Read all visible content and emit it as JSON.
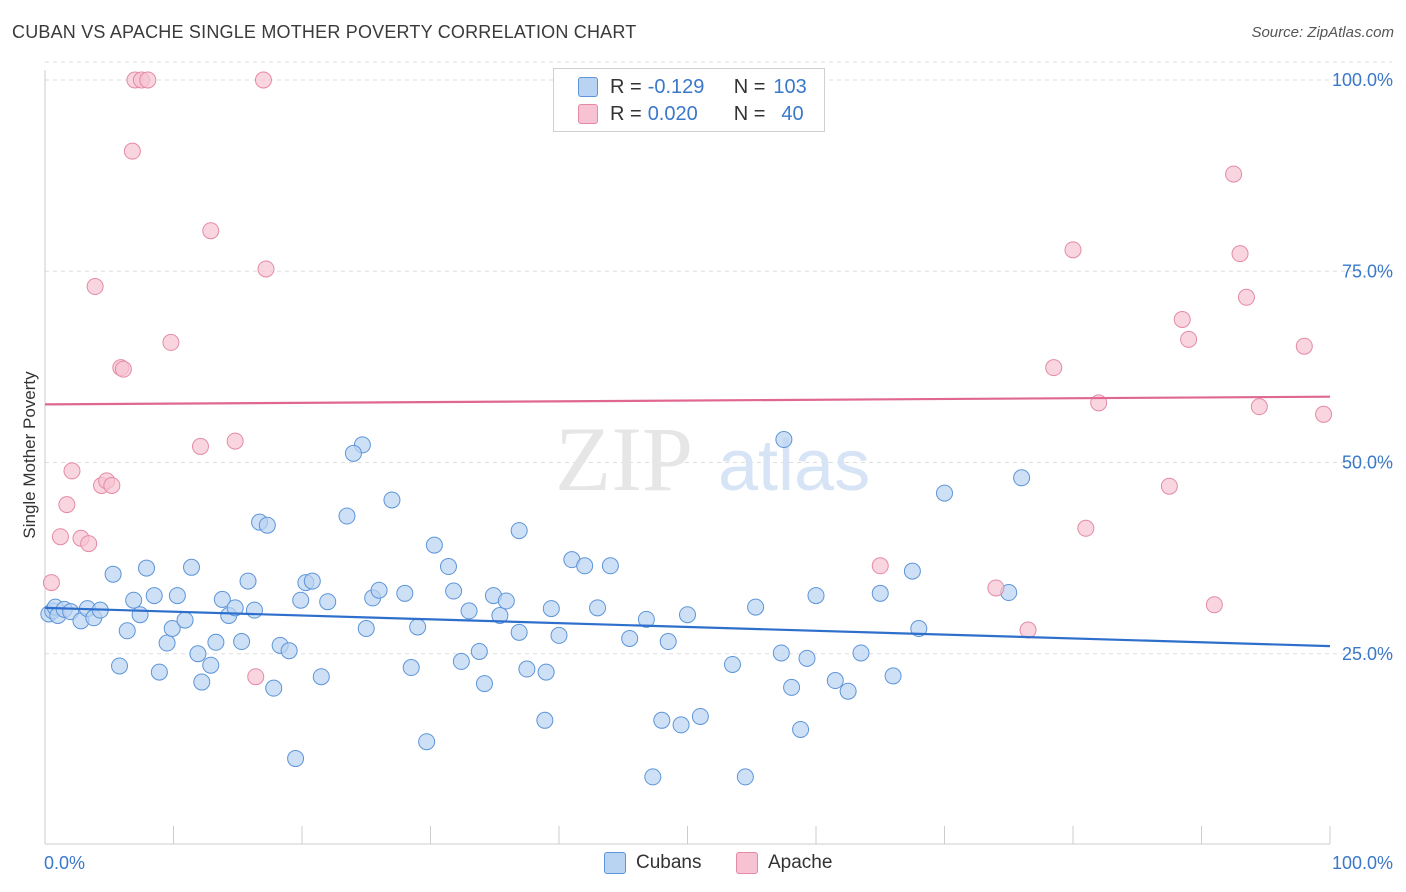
{
  "header": {
    "title": "CUBAN VS APACHE SINGLE MOTHER POVERTY CORRELATION CHART",
    "source": "Source: ZipAtlas.com"
  },
  "watermark": {
    "zip": "ZIP",
    "atlas": "atlas"
  },
  "legend": {
    "rows": [
      {
        "r_label": "R =",
        "r_value": "-0.129",
        "n_label": "N =",
        "n_value": "103"
      },
      {
        "r_label": "R =",
        "r_value": "0.020",
        "n_label": "N =",
        "n_value": "40"
      }
    ]
  },
  "bottom_legend": {
    "cubans": "Cubans",
    "apache": "Apache"
  },
  "colors": {
    "cubans_fill": "#b9d3f2",
    "cubans_stroke": "#5d95d8",
    "cubans_line": "#2f6fcc",
    "apache_fill": "#f7c3d2",
    "apache_stroke": "#e48aa6",
    "apache_line": "#e06890",
    "axis_label": "#3a78c9",
    "grid": "#dddddd"
  },
  "chart_data": {
    "type": "scatter",
    "title": "CUBAN VS APACHE SINGLE MOTHER POVERTY CORRELATION CHART",
    "xlabel": "",
    "ylabel": "Single Mother Poverty",
    "xlim": [
      0,
      100
    ],
    "ylim": [
      0,
      102
    ],
    "x_tick_labels": [
      "0.0%",
      "100.0%"
    ],
    "y_ticks": [
      {
        "value": 25,
        "label": "25.0%"
      },
      {
        "value": 50,
        "label": "50.0%"
      },
      {
        "value": 75,
        "label": "75.0%"
      },
      {
        "value": 100,
        "label": "100.0%"
      }
    ],
    "grid": true,
    "series": [
      {
        "name": "Cubans",
        "r": -0.129,
        "n": 103,
        "trend": {
          "x": [
            0,
            100
          ],
          "y": [
            31.0,
            26.0
          ]
        },
        "points": [
          [
            0.3,
            30.2
          ],
          [
            0.6,
            30.6
          ],
          [
            0.8,
            31.1
          ],
          [
            1.0,
            30.0
          ],
          [
            1.5,
            30.8
          ],
          [
            2.0,
            30.5
          ],
          [
            2.8,
            29.3
          ],
          [
            3.3,
            30.9
          ],
          [
            3.8,
            29.7
          ],
          [
            4.3,
            30.7
          ],
          [
            5.3,
            35.4
          ],
          [
            5.8,
            23.4
          ],
          [
            6.4,
            28.0
          ],
          [
            6.9,
            32.0
          ],
          [
            7.4,
            30.1
          ],
          [
            7.9,
            36.2
          ],
          [
            8.5,
            32.6
          ],
          [
            8.9,
            22.6
          ],
          [
            9.5,
            26.4
          ],
          [
            9.9,
            28.3
          ],
          [
            10.3,
            32.6
          ],
          [
            10.9,
            29.4
          ],
          [
            11.4,
            36.3
          ],
          [
            11.9,
            25.0
          ],
          [
            12.2,
            21.3
          ],
          [
            12.9,
            23.5
          ],
          [
            13.3,
            26.5
          ],
          [
            13.8,
            32.1
          ],
          [
            14.3,
            30.0
          ],
          [
            14.8,
            31.0
          ],
          [
            15.3,
            26.6
          ],
          [
            15.8,
            34.5
          ],
          [
            16.3,
            30.7
          ],
          [
            16.7,
            42.2
          ],
          [
            17.3,
            41.8
          ],
          [
            17.8,
            20.5
          ],
          [
            18.3,
            26.1
          ],
          [
            19.0,
            25.4
          ],
          [
            19.5,
            11.3
          ],
          [
            19.9,
            32.0
          ],
          [
            20.3,
            34.3
          ],
          [
            20.8,
            34.5
          ],
          [
            21.5,
            22.0
          ],
          [
            22.0,
            31.8
          ],
          [
            23.5,
            43.0
          ],
          [
            24.7,
            52.3
          ],
          [
            24.0,
            51.2
          ],
          [
            25.0,
            28.3
          ],
          [
            25.5,
            32.3
          ],
          [
            26.0,
            33.3
          ],
          [
            27.0,
            45.1
          ],
          [
            28.0,
            32.9
          ],
          [
            28.5,
            23.2
          ],
          [
            29.0,
            28.5
          ],
          [
            29.7,
            13.5
          ],
          [
            30.3,
            39.2
          ],
          [
            31.4,
            36.4
          ],
          [
            31.8,
            33.2
          ],
          [
            32.4,
            24.0
          ],
          [
            33.0,
            30.6
          ],
          [
            33.8,
            25.3
          ],
          [
            34.2,
            21.1
          ],
          [
            34.9,
            32.6
          ],
          [
            35.4,
            30.0
          ],
          [
            35.9,
            31.9
          ],
          [
            36.9,
            27.8
          ],
          [
            36.9,
            41.1
          ],
          [
            37.5,
            23.0
          ],
          [
            38.9,
            16.3
          ],
          [
            39.0,
            22.6
          ],
          [
            39.4,
            30.9
          ],
          [
            40.0,
            27.4
          ],
          [
            41.0,
            37.3
          ],
          [
            42.0,
            36.5
          ],
          [
            43.0,
            31.0
          ],
          [
            44.0,
            36.5
          ],
          [
            45.5,
            27.0
          ],
          [
            46.8,
            29.5
          ],
          [
            47.3,
            8.9
          ],
          [
            48.0,
            16.3
          ],
          [
            48.5,
            26.6
          ],
          [
            49.5,
            15.7
          ],
          [
            50.0,
            30.1
          ],
          [
            51.0,
            16.8
          ],
          [
            53.5,
            23.6
          ],
          [
            54.5,
            8.9
          ],
          [
            55.3,
            31.1
          ],
          [
            57.3,
            25.1
          ],
          [
            58.1,
            20.6
          ],
          [
            58.8,
            15.1
          ],
          [
            59.3,
            24.4
          ],
          [
            60.0,
            32.6
          ],
          [
            61.5,
            21.5
          ],
          [
            62.5,
            20.1
          ],
          [
            63.5,
            25.1
          ],
          [
            65.0,
            32.9
          ],
          [
            66.0,
            22.1
          ],
          [
            67.5,
            35.8
          ],
          [
            68.0,
            28.3
          ],
          [
            75.0,
            33.0
          ],
          [
            70.0,
            46.0
          ],
          [
            76.0,
            48.0
          ],
          [
            57.5,
            53.0
          ]
        ]
      },
      {
        "name": "Apache",
        "r": 0.02,
        "n": 40,
        "trend": {
          "x": [
            0,
            100
          ],
          "y": [
            57.6,
            58.6
          ]
        },
        "points": [
          [
            0.5,
            34.3
          ],
          [
            1.2,
            40.3
          ],
          [
            1.7,
            44.5
          ],
          [
            2.1,
            48.9
          ],
          [
            2.8,
            40.1
          ],
          [
            3.4,
            39.4
          ],
          [
            3.9,
            73.0
          ],
          [
            4.4,
            47.0
          ],
          [
            4.8,
            47.6
          ],
          [
            5.2,
            47.0
          ],
          [
            5.9,
            62.4
          ],
          [
            6.1,
            62.2
          ],
          [
            6.8,
            90.7
          ],
          [
            7.0,
            100.0
          ],
          [
            7.5,
            100.0
          ],
          [
            8.0,
            100.0
          ],
          [
            9.8,
            65.7
          ],
          [
            12.1,
            52.1
          ],
          [
            12.9,
            80.3
          ],
          [
            14.8,
            52.8
          ],
          [
            16.4,
            22.0
          ],
          [
            17.2,
            75.3
          ],
          [
            17.0,
            100.0
          ],
          [
            65.0,
            36.5
          ],
          [
            74.0,
            33.6
          ],
          [
            76.5,
            28.1
          ],
          [
            78.5,
            62.4
          ],
          [
            80.0,
            77.8
          ],
          [
            81.0,
            41.4
          ],
          [
            82.0,
            57.8
          ],
          [
            87.5,
            46.9
          ],
          [
            88.5,
            68.7
          ],
          [
            89.0,
            66.1
          ],
          [
            91.0,
            31.4
          ],
          [
            92.5,
            87.7
          ],
          [
            93.0,
            77.3
          ],
          [
            93.5,
            71.6
          ],
          [
            94.5,
            57.3
          ],
          [
            98.0,
            65.2
          ],
          [
            99.5,
            56.3
          ]
        ]
      }
    ]
  }
}
